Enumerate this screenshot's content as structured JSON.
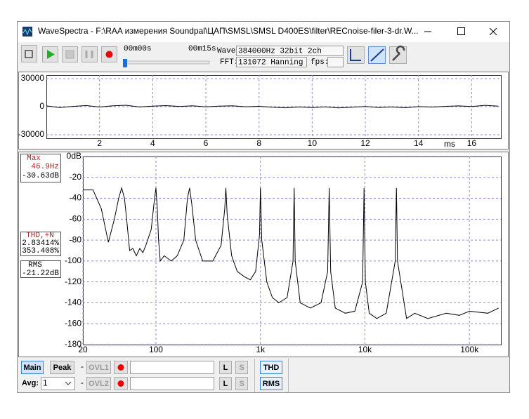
{
  "window": {
    "title": "WaveSpectra - F:\\RAA измерения Soundpal\\ЦАП\\SMSL\\SMSL D400ES\\filter\\RECnoise-filer-3-dr.W..."
  },
  "toolbar": {
    "time_start": "00m00s",
    "time_end": "00m15s",
    "wave_label": "Wave:",
    "wave_format": "384000Hz 32bit 2ch",
    "fft_label": "FFT:",
    "fft_setting": "131072 Hanning",
    "fps_label": "fps:"
  },
  "readouts": {
    "max_label": "Max",
    "max_freq": "46.9Hz",
    "max_level": "-30.63dB",
    "thdn_label": "THD,+N",
    "thdn_1": "2.83414%",
    "thdn_2": "353.408%",
    "rms_label": "RMS",
    "rms_level": "-21.22dB"
  },
  "controls": {
    "row1": {
      "main": "Main",
      "peak": "Peak",
      "dash": "-",
      "ovl": "OVL1",
      "l": "L",
      "s": "S",
      "mode": "THD"
    },
    "row2": {
      "avg_label": "Avg:",
      "avg_value": "1",
      "dash": "-",
      "ovl": "OVL2",
      "l": "L",
      "s": "S",
      "mode": "RMS"
    }
  },
  "chart_data": [
    {
      "type": "line",
      "color": "#000000",
      "grid": true,
      "xlabel": "ms",
      "xlim": [
        0,
        17.1
      ],
      "ylim": [
        -33750,
        33750
      ],
      "xticks": [
        2,
        4,
        6,
        8,
        10,
        12,
        14,
        16
      ],
      "yticks": [
        30000,
        0,
        -30000
      ],
      "x": [
        0,
        0.5,
        1,
        1.5,
        2,
        2.5,
        3,
        3.5,
        4,
        4.5,
        5,
        5.5,
        6,
        6.5,
        7,
        7.5,
        8,
        8.5,
        9,
        9.5,
        10,
        10.5,
        11,
        11.5,
        12,
        12.5,
        13,
        13.5,
        14,
        14.5,
        15,
        15.5,
        16,
        16.5,
        17
      ],
      "values": [
        800,
        -900,
        300,
        1200,
        -400,
        900,
        1500,
        -300,
        600,
        1100,
        200,
        900,
        -200,
        500,
        1000,
        -100,
        400,
        -600,
        -1200,
        -300,
        -900,
        -200,
        -1300,
        -500,
        200,
        -800,
        -300,
        -1100,
        100,
        -400,
        300,
        800,
        200,
        1400,
        600
      ]
    },
    {
      "type": "line",
      "xscale": "log",
      "color": "#000000",
      "grid": true,
      "xlim": [
        20,
        200000
      ],
      "ylim": [
        -180,
        0
      ],
      "xticks": [
        20,
        100,
        {
          "value": 1000,
          "label": "1k"
        },
        {
          "value": 10000,
          "label": "10k"
        },
        {
          "value": 100000,
          "label": "100k"
        }
      ],
      "yticks": [
        {
          "value": 0,
          "label": "0dB"
        },
        -20,
        -40,
        -60,
        -80,
        -100,
        -120,
        -140,
        -160,
        -180
      ],
      "x": [
        20,
        25,
        30,
        35,
        40,
        44,
        47,
        50,
        53,
        56,
        60,
        65,
        70,
        75,
        80,
        90,
        97,
        100,
        103,
        106,
        110,
        120,
        140,
        160,
        185,
        200,
        210,
        220,
        240,
        280,
        350,
        420,
        455,
        467,
        480,
        530,
        600,
        700,
        800,
        900,
        980,
        1000,
        1030,
        1150,
        1300,
        1500,
        1800,
        2050,
        2100,
        2150,
        2400,
        3000,
        3800,
        4400,
        4550,
        4700,
        5200,
        6500,
        8000,
        9500,
        9800,
        10100,
        11000,
        13000,
        16000,
        19500,
        20000,
        20500,
        25000,
        30000,
        40000,
        60000,
        80000,
        100000,
        150000,
        190000
      ],
      "values": [
        -32,
        -32,
        -50,
        -82,
        -60,
        -40,
        -30,
        -40,
        -65,
        -90,
        -88,
        -95,
        -88,
        -92,
        -85,
        -70,
        -40,
        -30,
        -50,
        -80,
        -100,
        -95,
        -100,
        -95,
        -80,
        -40,
        -30,
        -45,
        -80,
        -100,
        -100,
        -85,
        -50,
        -30,
        -55,
        -95,
        -110,
        -115,
        -118,
        -110,
        -75,
        -30,
        -80,
        -120,
        -135,
        -140,
        -135,
        -100,
        -30,
        -100,
        -140,
        -145,
        -140,
        -110,
        -30,
        -110,
        -145,
        -150,
        -148,
        -120,
        -30,
        -120,
        -150,
        -155,
        -150,
        -100,
        -30,
        -100,
        -155,
        -150,
        -155,
        -150,
        -152,
        -148,
        -150,
        -145
      ]
    }
  ]
}
